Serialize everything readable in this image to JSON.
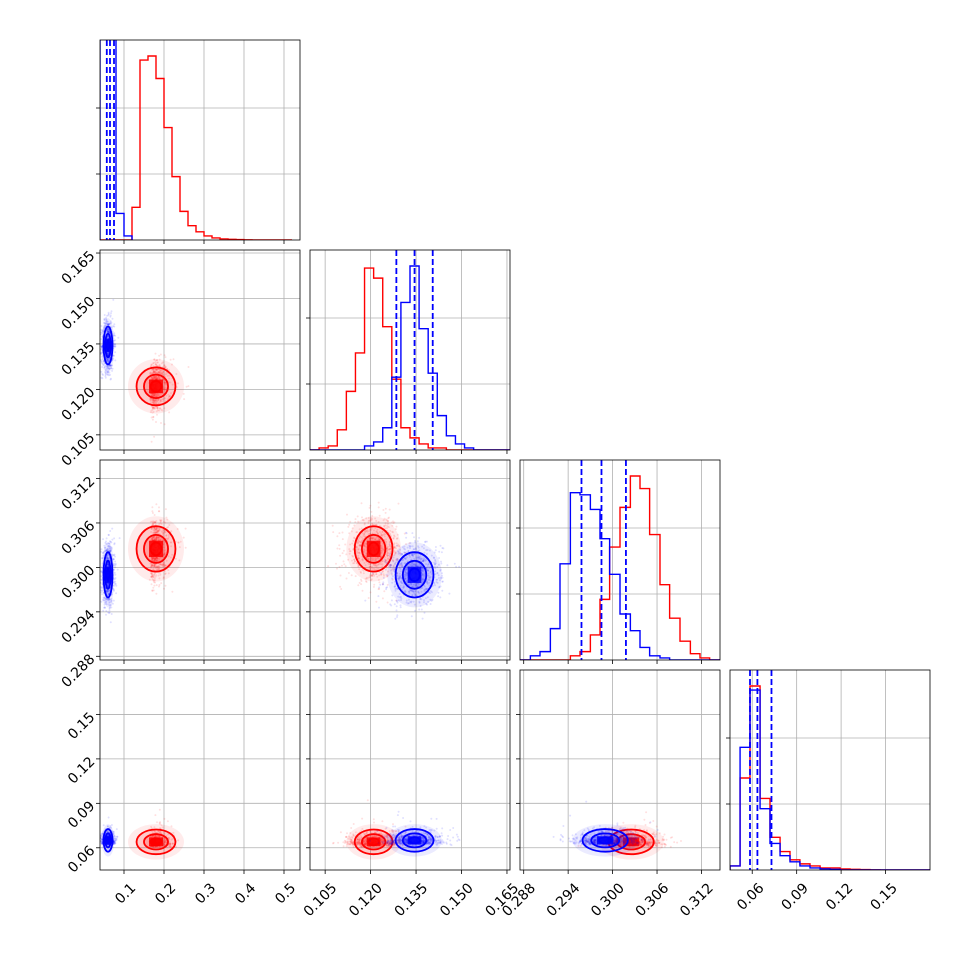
{
  "chart_data": {
    "type": "corner",
    "parameters": [
      {
        "range": [
          0.04,
          0.54
        ],
        "ticks": [
          0.1,
          0.2,
          0.3,
          0.4,
          0.5
        ],
        "tick_labels": [
          "0.1",
          "0.2",
          "0.3",
          "0.4",
          "0.5"
        ]
      },
      {
        "range": [
          0.1,
          0.166
        ],
        "ticks": [
          0.105,
          0.12,
          0.135,
          0.15,
          0.165
        ],
        "tick_labels": [
          "0.105",
          "0.120",
          "0.135",
          "0.150",
          "0.165"
        ]
      },
      {
        "range": [
          0.2875,
          0.3145
        ],
        "ticks": [
          0.288,
          0.294,
          0.3,
          0.306,
          0.312
        ],
        "tick_labels": [
          "0.288",
          "0.294",
          "0.300",
          "0.306",
          "0.312"
        ]
      },
      {
        "range": [
          0.045,
          0.18
        ],
        "ticks": [
          0.06,
          0.09,
          0.12,
          0.15
        ],
        "tick_labels": [
          "0.06",
          "0.09",
          "0.12",
          "0.15"
        ]
      }
    ],
    "series": [
      {
        "color": "#ff0000",
        "hist_style": "step",
        "means": [
          0.18,
          0.121,
          0.3025,
          0.064
        ],
        "sds": [
          0.035,
          0.0045,
          0.0022,
          0.006
        ],
        "skews": [
          1.8,
          0,
          0,
          2.5
        ],
        "quantile_lines": false,
        "histograms": [
          {
            "bin_edges": [
              0.04,
              0.06,
              0.08,
              0.1,
              0.12,
              0.14,
              0.16,
              0.18,
              0.2,
              0.22,
              0.24,
              0.26,
              0.28,
              0.3,
              0.32,
              0.34,
              0.36,
              0.38,
              0.4,
              0.42,
              0.44,
              0.46,
              0.48,
              0.5,
              0.52
            ],
            "counts": [
              0,
              0,
              0,
              0,
              0.16,
              0.88,
              0.9,
              0.79,
              0.55,
              0.31,
              0.14,
              0.07,
              0.04,
              0.02,
              0.01,
              0.005,
              0.003,
              0.002,
              0.001,
              0,
              0,
              0,
              0,
              0
            ]
          },
          {
            "bin_edges": [
              0.1,
              0.103,
              0.106,
              0.109,
              0.112,
              0.115,
              0.118,
              0.121,
              0.124,
              0.127,
              0.13,
              0.133,
              0.136,
              0.139,
              0.142,
              0.145,
              0.148,
              0.151,
              0.154,
              0.157,
              0.16,
              0.163,
              0.166
            ],
            "counts": [
              0,
              0.01,
              0.02,
              0.1,
              0.29,
              0.48,
              0.9,
              0.85,
              0.61,
              0.35,
              0.11,
              0.06,
              0.03,
              0.01,
              0.01,
              0,
              0,
              0,
              0,
              0,
              0,
              0
            ]
          },
          {
            "bin_edges": [
              0.2875,
              0.2889,
              0.2902,
              0.2916,
              0.2929,
              0.2943,
              0.2956,
              0.297,
              0.2983,
              0.2996,
              0.301,
              0.3024,
              0.3037,
              0.305,
              0.3064,
              0.3077,
              0.3091,
              0.3105,
              0.3118,
              0.3131,
              0.3145
            ],
            "counts": [
              0,
              0,
              0,
              0,
              0,
              0.02,
              0.04,
              0.12,
              0.29,
              0.54,
              0.73,
              0.88,
              0.82,
              0.6,
              0.36,
              0.2,
              0.09,
              0.03,
              0.01,
              0
            ]
          },
          {
            "bin_edges": [
              0.045,
              0.0518,
              0.0585,
              0.0653,
              0.072,
              0.0788,
              0.0855,
              0.0922,
              0.099,
              0.1058,
              0.1125,
              0.1193,
              0.126,
              0.1327,
              0.1395,
              0.1463,
              0.153,
              0.1598,
              0.1665,
              0.1732,
              0.18
            ],
            "counts": [
              0.02,
              0.45,
              0.9,
              0.35,
              0.16,
              0.09,
              0.05,
              0.03,
              0.02,
              0.01,
              0.01,
              0.005,
              0.003,
              0.002,
              0.001,
              0,
              0,
              0,
              0,
              0
            ]
          }
        ]
      },
      {
        "color": "#0000ff",
        "hist_style": "step",
        "means": [
          0.06,
          0.1345,
          0.299,
          0.065
        ],
        "sds": [
          0.008,
          0.0045,
          0.0022,
          0.0055
        ],
        "skews": [
          0,
          0,
          0,
          2.5
        ],
        "quantile_lines": true,
        "quantiles": [
          [
            0.057,
            0.065,
            0.075
          ],
          [
            0.1285,
            0.1345,
            0.1405
          ],
          [
            0.2958,
            0.2985,
            0.3018
          ],
          [
            0.0585,
            0.0635,
            0.073
          ]
        ],
        "histograms": [
          {
            "bin_edges": [
              0.04,
              0.06,
              0.08,
              0.1,
              0.12
            ],
            "counts": [
              20,
              10,
              0.13,
              0.02
            ]
          },
          {
            "bin_edges": [
              0.1,
              0.103,
              0.106,
              0.109,
              0.112,
              0.115,
              0.118,
              0.121,
              0.124,
              0.127,
              0.13,
              0.133,
              0.136,
              0.139,
              0.142,
              0.145,
              0.148,
              0.151,
              0.154,
              0.157,
              0.16,
              0.163,
              0.166
            ],
            "counts": [
              0,
              0,
              0,
              0,
              0,
              0,
              0.02,
              0.04,
              0.11,
              0.36,
              0.73,
              0.91,
              0.6,
              0.38,
              0.17,
              0.07,
              0.03,
              0.01,
              0,
              0,
              0,
              0
            ]
          },
          {
            "bin_edges": [
              0.2875,
              0.2889,
              0.2902,
              0.2916,
              0.2929,
              0.2943,
              0.2956,
              0.297,
              0.2983,
              0.2996,
              0.301,
              0.3024,
              0.3037,
              0.305,
              0.3064,
              0.3077,
              0.3091,
              0.3105,
              0.3118,
              0.3131,
              0.3145
            ],
            "counts": [
              0,
              0.02,
              0.04,
              0.15,
              0.46,
              0.8,
              0.79,
              0.72,
              0.58,
              0.41,
              0.22,
              0.14,
              0.06,
              0.02,
              0.01,
              0,
              0,
              0,
              0,
              0
            ]
          },
          {
            "bin_edges": [
              0.045,
              0.0518,
              0.0585,
              0.0653,
              0.072,
              0.0788,
              0.0855,
              0.0922,
              0.099,
              0.1058,
              0.1125,
              0.1193,
              0.126,
              0.1327,
              0.1395,
              0.1463,
              0.153,
              0.1598,
              0.1665,
              0.1732,
              0.18
            ],
            "counts": [
              0.02,
              0.6,
              0.88,
              0.3,
              0.13,
              0.07,
              0.04,
              0.02,
              0.01,
              0.005,
              0.003,
              0,
              0,
              0,
              0,
              0,
              0,
              0,
              0,
              0
            ]
          }
        ]
      }
    ],
    "contour_levels": [
      0.39,
      0.86,
      1.39,
      2.0
    ],
    "grid": true
  }
}
